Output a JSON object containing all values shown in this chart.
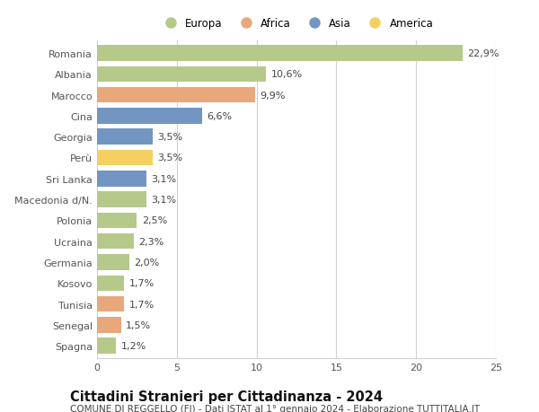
{
  "countries": [
    "Romania",
    "Albania",
    "Marocco",
    "Cina",
    "Georgia",
    "Perù",
    "Sri Lanka",
    "Macedonia d/N.",
    "Polonia",
    "Ucraina",
    "Germania",
    "Kosovo",
    "Tunisia",
    "Senegal",
    "Spagna"
  ],
  "values": [
    22.9,
    10.6,
    9.9,
    6.6,
    3.5,
    3.5,
    3.1,
    3.1,
    2.5,
    2.3,
    2.0,
    1.7,
    1.7,
    1.5,
    1.2
  ],
  "labels": [
    "22,9%",
    "10,6%",
    "9,9%",
    "6,6%",
    "3,5%",
    "3,5%",
    "3,1%",
    "3,1%",
    "2,5%",
    "2,3%",
    "2,0%",
    "1,7%",
    "1,7%",
    "1,5%",
    "1,2%"
  ],
  "continents": [
    "Europa",
    "Europa",
    "Africa",
    "Asia",
    "Asia",
    "America",
    "Asia",
    "Europa",
    "Europa",
    "Europa",
    "Europa",
    "Europa",
    "Africa",
    "Africa",
    "Europa"
  ],
  "colors": {
    "Europa": "#b5c98a",
    "Africa": "#e8a87c",
    "Asia": "#7295c2",
    "America": "#f5d060"
  },
  "xlim": [
    0,
    25
  ],
  "xticks": [
    0,
    5,
    10,
    15,
    20,
    25
  ],
  "title": "Cittadini Stranieri per Cittadinanza - 2024",
  "subtitle": "COMUNE DI REGGELLO (FI) - Dati ISTAT al 1° gennaio 2024 - Elaborazione TUTTITALIA.IT",
  "background_color": "#ffffff",
  "grid_color": "#d0d0d0",
  "bar_height": 0.75,
  "label_fontsize": 8,
  "ytick_fontsize": 8,
  "xtick_fontsize": 8,
  "title_fontsize": 10.5,
  "subtitle_fontsize": 7.5
}
